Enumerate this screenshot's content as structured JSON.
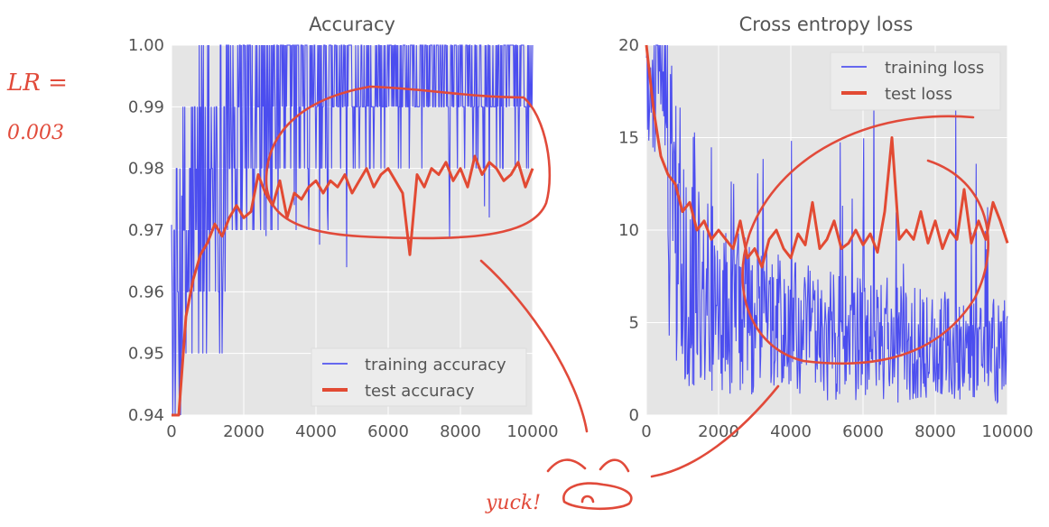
{
  "annotations": {
    "lr_line1": "LR =",
    "lr_line2": "0.003",
    "yuck": "yuck!",
    "color": "#e14a3a"
  },
  "colors": {
    "training": "#3a3cf0",
    "test": "#e24a33",
    "plot_bg": "#e5e5e5",
    "grid": "#ffffff",
    "text": "#555555"
  },
  "chart_data": [
    {
      "type": "line",
      "title": "Accuracy",
      "xlabel": "",
      "ylabel": "",
      "xlim": [
        0,
        10000
      ],
      "ylim": [
        0.94,
        1.0
      ],
      "xticks": [
        0,
        2000,
        4000,
        6000,
        8000,
        10000
      ],
      "yticks": [
        0.94,
        0.95,
        0.96,
        0.97,
        0.98,
        0.99,
        1.0
      ],
      "xtick_labels": [
        "0",
        "2000",
        "4000",
        "6000",
        "8000",
        "10000"
      ],
      "ytick_labels": [
        "0.94",
        "0.95",
        "0.96",
        "0.97",
        "0.98",
        "0.99",
        "1.00"
      ],
      "grid": true,
      "legend_position": "bottom-right",
      "series": [
        {
          "name": "training accuracy",
          "color": "#3a3cf0",
          "style": "noisy",
          "description": "oscillates between 0.94 and 1.00 per batch; mostly 0.97-1.00 after 2000 iterations",
          "x_range": [
            0,
            10000
          ],
          "base_level": [
            [
              0,
              0.94
            ],
            [
              500,
              0.96
            ],
            [
              1000,
              0.97
            ],
            [
              2000,
              0.98
            ],
            [
              4000,
              0.985
            ],
            [
              6000,
              0.99
            ],
            [
              10000,
              0.99
            ]
          ]
        },
        {
          "name": "test accuracy",
          "color": "#e24a33",
          "style": "smooth",
          "x": [
            0,
            200,
            400,
            600,
            800,
            1000,
            1200,
            1400,
            1600,
            1800,
            2000,
            2200,
            2400,
            2600,
            2800,
            3000,
            3200,
            3400,
            3600,
            3800,
            4000,
            4200,
            4400,
            4600,
            4800,
            5000,
            5200,
            5400,
            5600,
            5800,
            6000,
            6200,
            6400,
            6600,
            6800,
            7000,
            7200,
            7400,
            7600,
            7800,
            8000,
            8200,
            8400,
            8600,
            8800,
            9000,
            9200,
            9400,
            9600,
            9800,
            10000
          ],
          "y": [
            0.93,
            0.94,
            0.956,
            0.962,
            0.966,
            0.968,
            0.971,
            0.969,
            0.972,
            0.974,
            0.972,
            0.973,
            0.979,
            0.976,
            0.974,
            0.978,
            0.972,
            0.976,
            0.975,
            0.977,
            0.978,
            0.976,
            0.978,
            0.977,
            0.979,
            0.976,
            0.978,
            0.98,
            0.977,
            0.979,
            0.98,
            0.978,
            0.976,
            0.966,
            0.979,
            0.977,
            0.98,
            0.979,
            0.981,
            0.978,
            0.98,
            0.977,
            0.982,
            0.979,
            0.981,
            0.98,
            0.978,
            0.979,
            0.981,
            0.977,
            0.98
          ]
        }
      ]
    },
    {
      "type": "line",
      "title": "Cross entropy loss",
      "xlabel": "",
      "ylabel": "",
      "xlim": [
        0,
        10000
      ],
      "ylim": [
        0,
        20
      ],
      "xticks": [
        0,
        2000,
        4000,
        6000,
        8000,
        10000
      ],
      "yticks": [
        0,
        5,
        10,
        15,
        20
      ],
      "xtick_labels": [
        "0",
        "2000",
        "4000",
        "6000",
        "8000",
        "10000"
      ],
      "ytick_labels": [
        "0",
        "5",
        "10",
        "15",
        "20"
      ],
      "grid": true,
      "legend_position": "top-right",
      "series": [
        {
          "name": "training loss",
          "color": "#3a3cf0",
          "style": "noisy",
          "description": "very noisy, large spikes early (up to 20), later mostly 0-8 with spikes to ~15",
          "x_range": [
            0,
            10000
          ],
          "base_level": [
            [
              0,
              20
            ],
            [
              300,
              14
            ],
            [
              800,
              9
            ],
            [
              2000,
              5
            ],
            [
              4000,
              4
            ],
            [
              6000,
              3.5
            ],
            [
              10000,
              3
            ]
          ]
        },
        {
          "name": "test loss",
          "color": "#e24a33",
          "style": "smooth",
          "x": [
            0,
            200,
            400,
            600,
            800,
            1000,
            1200,
            1400,
            1600,
            1800,
            2000,
            2200,
            2400,
            2600,
            2800,
            3000,
            3200,
            3400,
            3600,
            3800,
            4000,
            4200,
            4400,
            4600,
            4800,
            5000,
            5200,
            5400,
            5600,
            5800,
            6000,
            6200,
            6400,
            6600,
            6800,
            7000,
            7200,
            7400,
            7600,
            7800,
            8000,
            8200,
            8400,
            8600,
            8800,
            9000,
            9200,
            9400,
            9600,
            9800,
            10000
          ],
          "y": [
            20,
            16.5,
            14,
            13,
            12.5,
            11,
            11.5,
            10,
            10.5,
            9.5,
            10,
            9.5,
            9,
            10.5,
            8.5,
            9,
            8,
            9.5,
            10,
            9,
            8.5,
            9.8,
            9.2,
            11.5,
            9,
            9.5,
            10.5,
            9,
            9.3,
            10,
            9.2,
            9.8,
            8.8,
            11,
            15,
            9.5,
            10,
            9.5,
            11,
            9.3,
            10.5,
            9,
            10,
            9.5,
            12.2,
            9.3,
            10.5,
            9.5,
            11.5,
            10.5,
            9.3
          ]
        }
      ]
    }
  ]
}
